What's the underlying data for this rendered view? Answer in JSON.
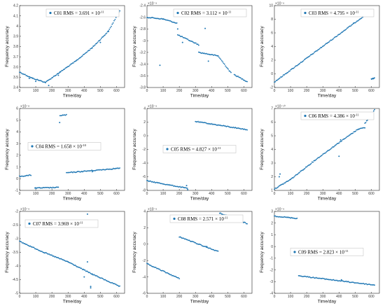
{
  "style": {
    "marker_color": "#1f77b4",
    "axis_color": "#222222",
    "legend_border": "#bbbbbb"
  },
  "chart_data": [
    {
      "type": "scatter",
      "legend": {
        "name": "C01",
        "rms_value": "3.691",
        "rms_exp": "-11",
        "placement": "top-right"
      },
      "xlabel": "Time/day",
      "ylabel": "Frequency accuracy",
      "y_multiplier": "",
      "xlim": [
        0,
        650
      ],
      "ylim": [
        3.4,
        4.2
      ],
      "xticks": [
        "0",
        "100",
        "200",
        "300",
        "400",
        "500",
        "600"
      ],
      "yticks": [
        "3.4",
        "3.5",
        "3.6",
        "3.7",
        "3.8",
        "3.9",
        "4",
        "4.1",
        "4.2"
      ],
      "grid": false,
      "segments": [
        {
          "x0": 0,
          "y0": 3.55,
          "x1": 80,
          "y1": 3.49
        },
        {
          "x0": 80,
          "y0": 3.49,
          "x1": 160,
          "y1": 3.45
        },
        {
          "x0": 160,
          "y0": 3.45,
          "x1": 250,
          "y1": 3.55
        },
        {
          "x0": 250,
          "y0": 3.55,
          "x1": 350,
          "y1": 3.66
        },
        {
          "x0": 350,
          "y0": 3.66,
          "x1": 450,
          "y1": 3.79
        },
        {
          "x0": 450,
          "y0": 3.79,
          "x1": 550,
          "y1": 3.95
        },
        {
          "x0": 550,
          "y0": 3.95,
          "x1": 620,
          "y1": 4.15
        }
      ],
      "outliers": [
        [
          60,
          3.49
        ],
        [
          100,
          3.46
        ],
        [
          180,
          3.42
        ],
        [
          240,
          3.52
        ],
        [
          500,
          3.84
        ]
      ]
    },
    {
      "type": "scatter",
      "legend": {
        "name": "C02",
        "rms_value": "3.112",
        "rms_exp": "-11",
        "placement": "top-right"
      },
      "xlabel": "Time/day",
      "ylabel": "Frequency accuracy",
      "y_multiplier": "×10⁻⁹",
      "xlim": [
        0,
        650
      ],
      "ylim": [
        -3.8,
        -2.4
      ],
      "xticks": [
        "0",
        "100",
        "200",
        "300",
        "400",
        "500",
        "600"
      ],
      "yticks": [
        "-3.8",
        "-3.6",
        "-3.4",
        "-3.2",
        "-3",
        "-2.8",
        "-2.6",
        "-2.4"
      ],
      "grid": false,
      "segments": [
        {
          "x0": 0,
          "y0": -2.6,
          "x1": 100,
          "y1": -2.63
        },
        {
          "x0": 100,
          "y0": -2.63,
          "x1": 185,
          "y1": -2.7
        },
        {
          "x0": 190,
          "y0": -2.9,
          "x1": 320,
          "y1": -3.07
        },
        {
          "x0": 320,
          "y0": -3.2,
          "x1": 440,
          "y1": -3.26
        },
        {
          "x0": 440,
          "y0": -3.26,
          "x1": 520,
          "y1": -3.55
        },
        {
          "x0": 540,
          "y0": -3.58,
          "x1": 620,
          "y1": -3.7
        }
      ],
      "outliers": [
        [
          190,
          -2.8
        ],
        [
          80,
          -3.42
        ],
        [
          360,
          -2.79
        ],
        [
          380,
          -3.35
        ],
        [
          220,
          -3.03
        ]
      ]
    },
    {
      "type": "scatter",
      "legend": {
        "name": "C03",
        "rms_value": "4.795",
        "rms_exp": "-11",
        "placement": "top-right"
      },
      "xlabel": "Time/day",
      "ylabel": "Frequency accuracy",
      "y_multiplier": "×10⁻⁹",
      "xlim": [
        0,
        650
      ],
      "ylim": [
        -2,
        10
      ],
      "xticks": [
        "0",
        "100",
        "200",
        "300",
        "400",
        "500",
        "600"
      ],
      "yticks": [
        "-2",
        "0",
        "2",
        "4",
        "6",
        "8",
        "10"
      ],
      "grid": false,
      "segments": [
        {
          "x0": 0,
          "y0": -1.2,
          "x1": 590,
          "y1": 9.1
        },
        {
          "x0": 600,
          "y0": -0.8,
          "x1": 620,
          "y1": -0.6
        }
      ],
      "outliers": [
        [
          490,
          7.4
        ]
      ]
    },
    {
      "type": "scatter",
      "legend": {
        "name": "C04",
        "rms_value": "1.658",
        "rms_exp": "-10",
        "placement": "center-left"
      },
      "xlabel": "Time/day",
      "ylabel": "Frequency accuracy",
      "y_multiplier": "×10⁻⁸",
      "xlim": [
        0,
        650
      ],
      "ylim": [
        -1,
        6
      ],
      "xticks": [
        "0",
        "100",
        "200",
        "300",
        "400",
        "500",
        "600"
      ],
      "yticks": [
        "-1",
        "0",
        "1",
        "2",
        "3",
        "4",
        "5",
        "6"
      ],
      "grid": false,
      "segments": [
        {
          "x0": 0,
          "y0": 0.2,
          "x1": 70,
          "y1": 0.3
        },
        {
          "x0": 95,
          "y0": -0.8,
          "x1": 240,
          "y1": -0.75
        },
        {
          "x0": 250,
          "y0": 5.4,
          "x1": 290,
          "y1": 5.45
        },
        {
          "x0": 290,
          "y0": 0.5,
          "x1": 620,
          "y1": 0.9
        }
      ],
      "outliers": [
        [
          248,
          4.8
        ],
        [
          450,
          0.6
        ],
        [
          100,
          -0.78
        ]
      ]
    },
    {
      "type": "scatter",
      "legend": {
        "name": "C05",
        "rms_value": "4.827",
        "rms_exp": "-11",
        "placement": "center"
      },
      "xlabel": "Time/day",
      "ylabel": "Frequency accuracy",
      "y_multiplier": "×10⁻⁹",
      "xlim": [
        0,
        650
      ],
      "ylim": [
        -8,
        4
      ],
      "xticks": [
        "0",
        "100",
        "200",
        "300",
        "400",
        "500",
        "600"
      ],
      "yticks": [
        "-8",
        "-6",
        "-4",
        "-2",
        "0",
        "2",
        "4"
      ],
      "grid": false,
      "segments": [
        {
          "x0": 0,
          "y0": -6.6,
          "x1": 250,
          "y1": -7.7
        },
        {
          "x0": 300,
          "y0": 2.1,
          "x1": 620,
          "y1": 0.9
        }
      ],
      "outliers": [
        [
          245,
          -7.3
        ],
        [
          252,
          -7.9
        ]
      ]
    },
    {
      "type": "scatter",
      "legend": {
        "name": "C06",
        "rms_value": "4.386",
        "rms_exp": "-11",
        "placement": "top-right"
      },
      "xlabel": "Time/day",
      "ylabel": "Frequency accuracy",
      "y_multiplier": "×10⁻¹⁰",
      "xlim": [
        0,
        650
      ],
      "ylim": [
        1,
        7
      ],
      "xticks": [
        "0",
        "100",
        "200",
        "300",
        "400",
        "500",
        "600"
      ],
      "yticks": [
        "1",
        "2",
        "3",
        "4",
        "5",
        "6",
        "7"
      ],
      "grid": false,
      "segments": [
        {
          "x0": 0,
          "y0": 1.1,
          "x1": 100,
          "y1": 1.8
        },
        {
          "x0": 100,
          "y0": 1.8,
          "x1": 250,
          "y1": 3.2
        },
        {
          "x0": 250,
          "y0": 3.2,
          "x1": 400,
          "y1": 4.5
        },
        {
          "x0": 400,
          "y0": 4.5,
          "x1": 520,
          "y1": 5.5
        },
        {
          "x0": 520,
          "y0": 5.5,
          "x1": 560,
          "y1": 5.6
        },
        {
          "x0": 560,
          "y0": 5.9,
          "x1": 620,
          "y1": 6.9
        }
      ],
      "outliers": [
        [
          30,
          2.0
        ],
        [
          35,
          2.2
        ],
        [
          400,
          3.5
        ],
        [
          410,
          4.7
        ]
      ]
    },
    {
      "type": "scatter",
      "legend": {
        "name": "C07",
        "rms_value": "3.969",
        "rms_exp": "-11",
        "placement": "top-left"
      },
      "xlabel": "Time/day",
      "ylabel": "Frequency accuracy",
      "y_multiplier": "×10⁻⁹",
      "xlim": [
        0,
        650
      ],
      "ylim": [
        -5,
        -2
      ],
      "xticks": [
        "0",
        "100",
        "200",
        "300",
        "400",
        "500",
        "600"
      ],
      "yticks": [
        "-5",
        "-4.5",
        "-4",
        "-3.5",
        "-3",
        "-2.5",
        "-2"
      ],
      "grid": false,
      "segments": [
        {
          "x0": 0,
          "y0": -3.1,
          "x1": 150,
          "y1": -3.5
        },
        {
          "x0": 150,
          "y0": -3.5,
          "x1": 300,
          "y1": -3.85
        },
        {
          "x0": 300,
          "y0": -3.85,
          "x1": 450,
          "y1": -4.3
        },
        {
          "x0": 450,
          "y0": -4.3,
          "x1": 620,
          "y1": -4.75
        }
      ],
      "outliers": [
        [
          420,
          -2.1
        ],
        [
          420,
          -3.85
        ],
        [
          440,
          -4.75
        ],
        [
          440,
          -4.8
        ],
        [
          400,
          -4.4
        ]
      ]
    },
    {
      "type": "scatter",
      "legend": {
        "name": "C08",
        "rms_value": "2.571",
        "rms_exp": "-11",
        "placement": "top-center"
      },
      "xlabel": "Time/day",
      "ylabel": "Frequency accuracy",
      "y_multiplier": "×10⁻⁹",
      "xlim": [
        0,
        650
      ],
      "ylim": [
        -6,
        4
      ],
      "xticks": [
        "0",
        "100",
        "200",
        "300",
        "400",
        "500",
        "600"
      ],
      "yticks": [
        "-6",
        "-4",
        "-2",
        "0",
        "2",
        "4"
      ],
      "grid": false,
      "segments": [
        {
          "x0": 0,
          "y0": -2.4,
          "x1": 200,
          "y1": -4.2
        },
        {
          "x0": 200,
          "y0": 0.9,
          "x1": 440,
          "y1": -0.9
        },
        {
          "x0": 450,
          "y0": 3.8,
          "x1": 620,
          "y1": 2.5
        }
      ],
      "outliers": [
        [
          370,
          -0.3
        ]
      ]
    },
    {
      "type": "scatter",
      "legend": {
        "name": "C09",
        "rms_value": "2.823",
        "rms_exp": "-11",
        "placement": "center"
      },
      "xlabel": "Time/day",
      "ylabel": "Frequency accuracy",
      "y_multiplier": "×10⁻⁹",
      "xlim": [
        0,
        650
      ],
      "ylim": [
        -4,
        3
      ],
      "xticks": [
        "0",
        "100",
        "200",
        "300",
        "400",
        "500",
        "600"
      ],
      "yticks": [
        "-4",
        "-3",
        "-2",
        "-1",
        "0",
        "1",
        "2",
        "3"
      ],
      "grid": false,
      "segments": [
        {
          "x0": 0,
          "y0": 2.6,
          "x1": 140,
          "y1": 2.4
        },
        {
          "x0": 150,
          "y0": -2.5,
          "x1": 620,
          "y1": -3.3
        }
      ],
      "outliers": [
        [
          415,
          -2.85
        ]
      ]
    }
  ]
}
